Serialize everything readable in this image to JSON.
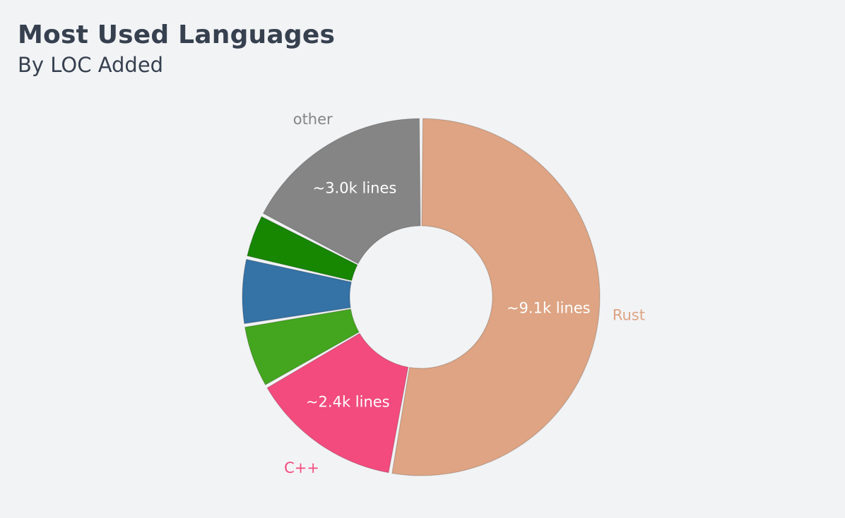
{
  "header": {
    "title": "Most Used Languages",
    "subtitle": "By LOC Added"
  },
  "chart_data": {
    "type": "pie",
    "donut": true,
    "title": "Most Used Languages",
    "subtitle": "By LOC Added",
    "slices": [
      {
        "label": "Rust",
        "value": 9100,
        "value_label": "~9.1k lines",
        "color": "#dea483",
        "show_name": true,
        "show_value": true
      },
      {
        "label": "C++",
        "value": 2400,
        "value_label": "~2.4k lines",
        "color": "#f34b7d",
        "show_name": true,
        "show_value": true
      },
      {
        "label": "",
        "value": 1000,
        "value_label": "",
        "color": "#44a51f",
        "show_name": false,
        "show_value": false
      },
      {
        "label": "",
        "value": 1050,
        "value_label": "",
        "color": "#3572a5",
        "show_name": false,
        "show_value": false
      },
      {
        "label": "",
        "value": 700,
        "value_label": "",
        "color": "#178600",
        "show_name": false,
        "show_value": false
      },
      {
        "label": "other",
        "value": 3000,
        "value_label": "~3.0k lines",
        "color": "#858585",
        "show_name": true,
        "show_value": true
      }
    ]
  }
}
